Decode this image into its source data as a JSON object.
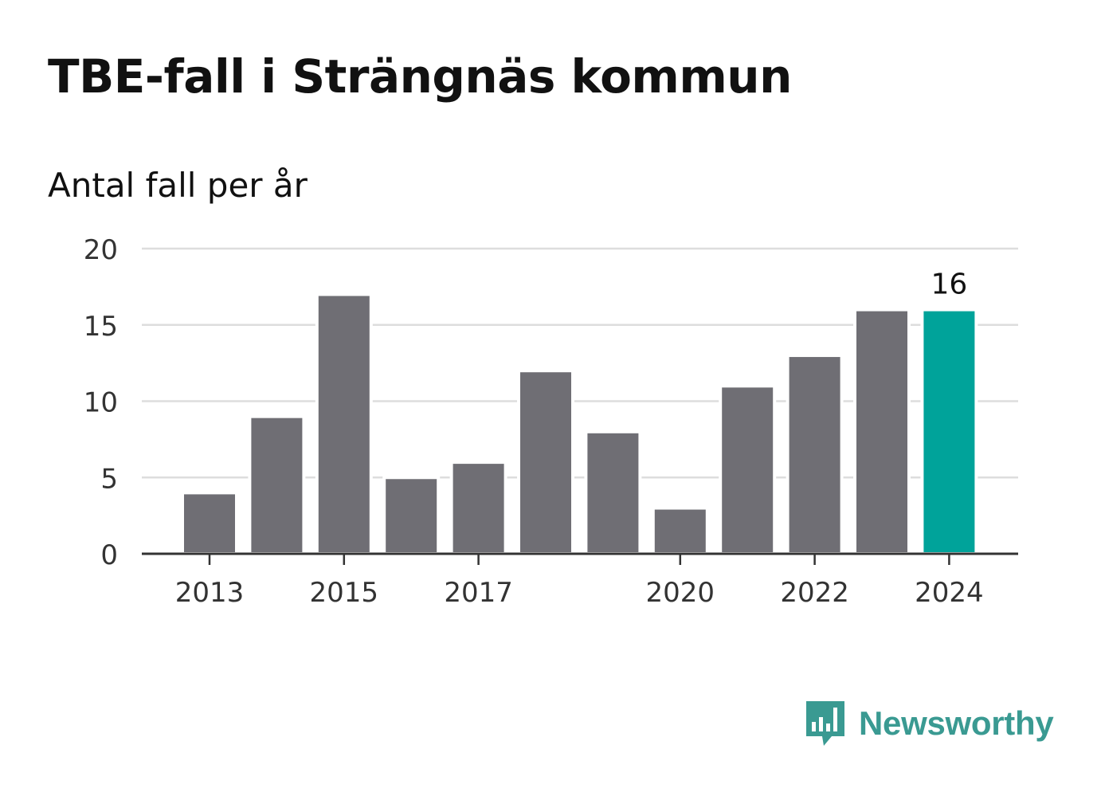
{
  "header": {
    "title": "TBE-fall i Strängnäs kommun",
    "subtitle": "Antal fall per år"
  },
  "chart_data": {
    "type": "bar",
    "categories": [
      "2013",
      "2014",
      "2015",
      "2016",
      "2017",
      "2018",
      "2019",
      "2020",
      "2021",
      "2022",
      "2023",
      "2024"
    ],
    "values": [
      4,
      9,
      17,
      5,
      6,
      12,
      8,
      3,
      11,
      13,
      16,
      16
    ],
    "x_tick_labels": [
      "2013",
      "2015",
      "2017",
      "2020",
      "2022",
      "2024"
    ],
    "y_ticks": [
      0,
      5,
      10,
      15,
      20
    ],
    "ylim": [
      0,
      20
    ],
    "highlight": {
      "category": "2024",
      "label": "16"
    },
    "grid": true,
    "colors": {
      "bar": "#6f6e74",
      "highlight": "#00a39a",
      "grid": "#dddddd",
      "axis": "#333333"
    }
  },
  "brand": {
    "name": "Newsworthy",
    "icon": "newsworthy-logo-icon",
    "color": "#3a9a92"
  }
}
